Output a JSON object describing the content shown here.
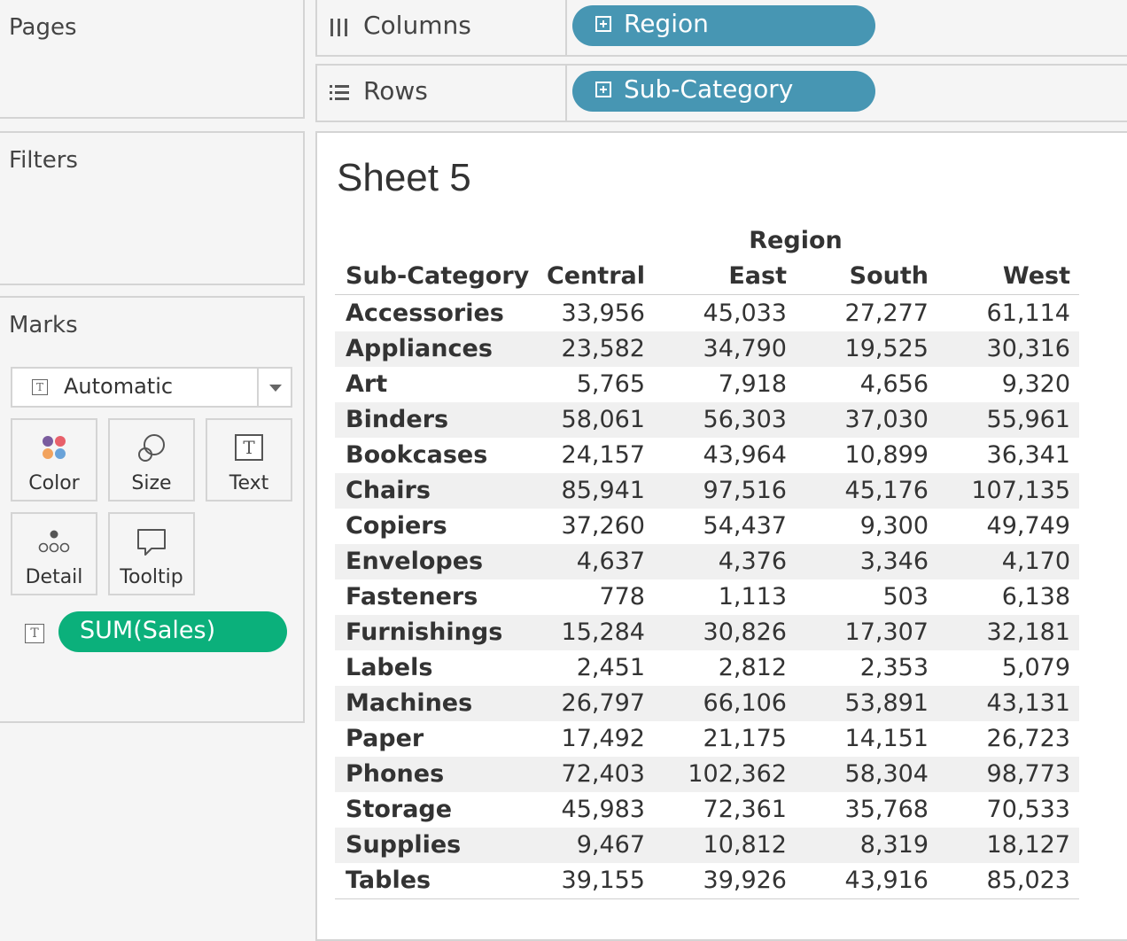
{
  "left_panel": {
    "pages_title": "Pages",
    "filters_title": "Filters",
    "marks_title": "Marks",
    "mark_type": "Automatic",
    "mark_buttons": [
      {
        "label": "Color",
        "icon": "color-dots-icon"
      },
      {
        "label": "Size",
        "icon": "size-circles-icon"
      },
      {
        "label": "Text",
        "icon": "text-box-icon"
      },
      {
        "label": "Detail",
        "icon": "detail-dots-icon"
      },
      {
        "label": "Tooltip",
        "icon": "speech-bubble-icon"
      }
    ],
    "measure_pill": "SUM(Sales)"
  },
  "shelves": {
    "columns_label": "Columns",
    "columns_pill": "Region",
    "rows_label": "Rows",
    "rows_pill": "Sub-Category"
  },
  "sheet": {
    "title": "Sheet 5",
    "region_header": "Region",
    "row_header": "Sub-Category",
    "columns": [
      "Central",
      "East",
      "South",
      "West"
    ],
    "rows": [
      {
        "name": "Accessories",
        "values": [
          "33,956",
          "45,033",
          "27,277",
          "61,114"
        ]
      },
      {
        "name": "Appliances",
        "values": [
          "23,582",
          "34,790",
          "19,525",
          "30,316"
        ]
      },
      {
        "name": "Art",
        "values": [
          "5,765",
          "7,918",
          "4,656",
          "9,320"
        ]
      },
      {
        "name": "Binders",
        "values": [
          "58,061",
          "56,303",
          "37,030",
          "55,961"
        ]
      },
      {
        "name": "Bookcases",
        "values": [
          "24,157",
          "43,964",
          "10,899",
          "36,341"
        ]
      },
      {
        "name": "Chairs",
        "values": [
          "85,941",
          "97,516",
          "45,176",
          "107,135"
        ]
      },
      {
        "name": "Copiers",
        "values": [
          "37,260",
          "54,437",
          "9,300",
          "49,749"
        ]
      },
      {
        "name": "Envelopes",
        "values": [
          "4,637",
          "4,376",
          "3,346",
          "4,170"
        ]
      },
      {
        "name": "Fasteners",
        "values": [
          "778",
          "1,113",
          "503",
          "6,138"
        ]
      },
      {
        "name": "Furnishings",
        "values": [
          "15,284",
          "30,826",
          "17,307",
          "32,181"
        ]
      },
      {
        "name": "Labels",
        "values": [
          "2,451",
          "2,812",
          "2,353",
          "5,079"
        ]
      },
      {
        "name": "Machines",
        "values": [
          "26,797",
          "66,106",
          "53,891",
          "43,131"
        ]
      },
      {
        "name": "Paper",
        "values": [
          "17,492",
          "21,175",
          "14,151",
          "26,723"
        ]
      },
      {
        "name": "Phones",
        "values": [
          "72,403",
          "102,362",
          "58,304",
          "98,773"
        ]
      },
      {
        "name": "Storage",
        "values": [
          "45,983",
          "72,361",
          "35,768",
          "70,533"
        ]
      },
      {
        "name": "Supplies",
        "values": [
          "9,467",
          "10,812",
          "8,319",
          "18,127"
        ]
      },
      {
        "name": "Tables",
        "values": [
          "39,155",
          "39,926",
          "43,916",
          "85,023"
        ]
      }
    ]
  },
  "colors": {
    "dimension_pill": "#4796b3",
    "measure_pill": "#0bb07b"
  }
}
